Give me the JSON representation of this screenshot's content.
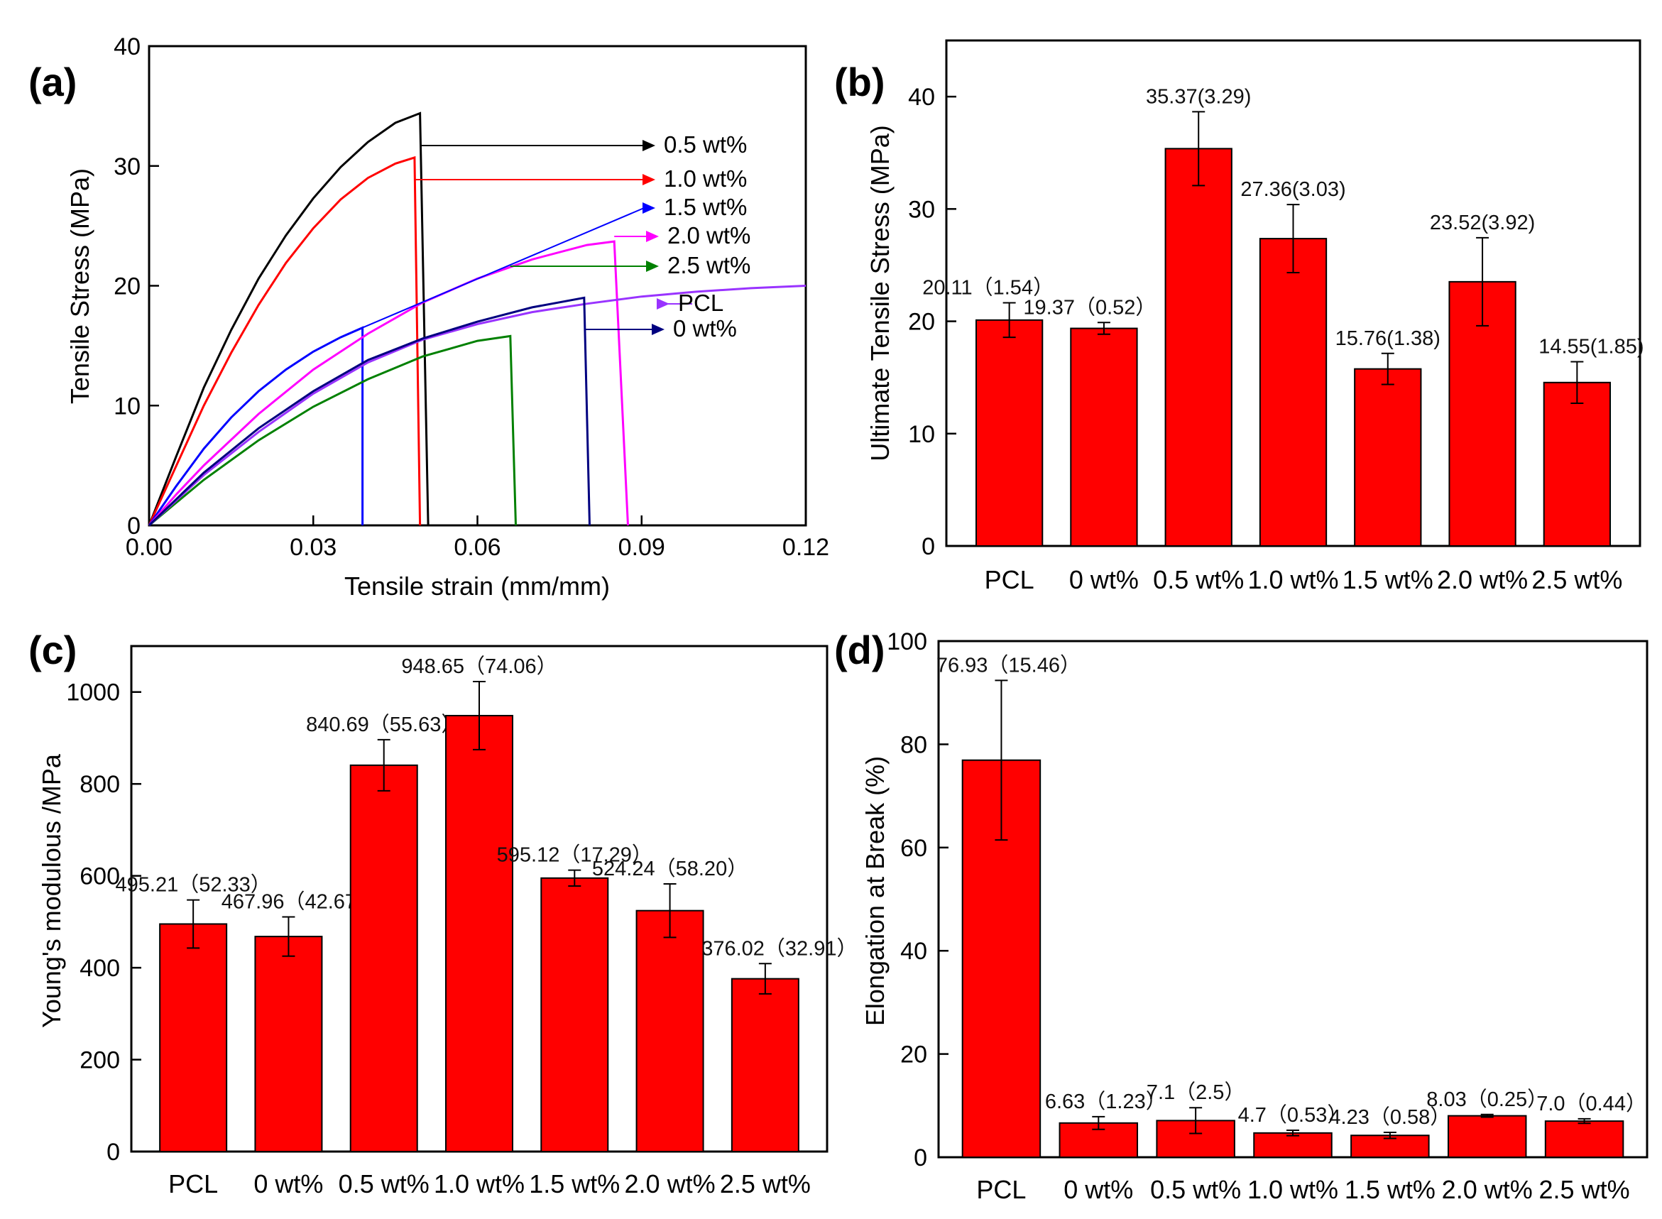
{
  "chart_data": [
    {
      "panel": "(a)",
      "type": "line",
      "xlabel": "Tensile strain (mm/mm)",
      "ylabel": "Tensile Stress (MPa)",
      "xlim": [
        0,
        0.12
      ],
      "ylim": [
        0,
        40
      ],
      "xticks": [
        "0.00",
        "0.03",
        "0.06",
        "0.09",
        "0.12"
      ],
      "yticks": [
        "0",
        "10",
        "20",
        "30",
        "40"
      ],
      "series": [
        {
          "name": "0.5 wt%",
          "color": "#000000",
          "break_strain": 0.051,
          "points": [
            [
              0,
              0
            ],
            [
              0.005,
              5.8
            ],
            [
              0.01,
              11.5
            ],
            [
              0.015,
              16.3
            ],
            [
              0.02,
              20.6
            ],
            [
              0.025,
              24.2
            ],
            [
              0.03,
              27.3
            ],
            [
              0.035,
              29.9
            ],
            [
              0.04,
              32.0
            ],
            [
              0.045,
              33.6
            ],
            [
              0.0495,
              34.4
            ]
          ]
        },
        {
          "name": "1.0 wt%",
          "color": "#ff0000",
          "break_strain": 0.0495,
          "points": [
            [
              0,
              0
            ],
            [
              0.005,
              5.0
            ],
            [
              0.01,
              10.0
            ],
            [
              0.015,
              14.4
            ],
            [
              0.02,
              18.4
            ],
            [
              0.025,
              21.9
            ],
            [
              0.03,
              24.8
            ],
            [
              0.035,
              27.2
            ],
            [
              0.04,
              29.0
            ],
            [
              0.045,
              30.2
            ],
            [
              0.0485,
              30.7
            ]
          ]
        },
        {
          "name": "1.5 wt%",
          "color": "#0000ff",
          "break_strain": 0.039,
          "points": [
            [
              0,
              0
            ],
            [
              0.005,
              3.3
            ],
            [
              0.01,
              6.4
            ],
            [
              0.015,
              9.0
            ],
            [
              0.02,
              11.2
            ],
            [
              0.025,
              13.0
            ],
            [
              0.03,
              14.5
            ],
            [
              0.035,
              15.7
            ],
            [
              0.039,
              16.5
            ]
          ]
        },
        {
          "name": "2.0 wt%",
          "color": "#ff00ff",
          "break_strain": 0.0875,
          "points": [
            [
              0,
              0
            ],
            [
              0.005,
              2.6
            ],
            [
              0.01,
              5.0
            ],
            [
              0.02,
              9.3
            ],
            [
              0.03,
              13.0
            ],
            [
              0.04,
              16.0
            ],
            [
              0.05,
              18.6
            ],
            [
              0.06,
              20.6
            ],
            [
              0.07,
              22.2
            ],
            [
              0.08,
              23.4
            ],
            [
              0.085,
              23.7
            ]
          ]
        },
        {
          "name": "2.5 wt%",
          "color": "#008000",
          "break_strain": 0.067,
          "points": [
            [
              0,
              0
            ],
            [
              0.005,
              1.9
            ],
            [
              0.01,
              3.8
            ],
            [
              0.02,
              7.1
            ],
            [
              0.03,
              9.9
            ],
            [
              0.04,
              12.2
            ],
            [
              0.05,
              14.1
            ],
            [
              0.06,
              15.4
            ],
            [
              0.066,
              15.8
            ]
          ]
        },
        {
          "name": "PCL",
          "color": "#9933ff",
          "break_strain": null,
          "points": [
            [
              0,
              0
            ],
            [
              0.005,
              2.1
            ],
            [
              0.01,
              4.2
            ],
            [
              0.02,
              7.8
            ],
            [
              0.03,
              11.0
            ],
            [
              0.04,
              13.6
            ],
            [
              0.05,
              15.5
            ],
            [
              0.06,
              16.8
            ],
            [
              0.07,
              17.8
            ],
            [
              0.08,
              18.5
            ],
            [
              0.09,
              19.1
            ],
            [
              0.1,
              19.5
            ],
            [
              0.11,
              19.8
            ],
            [
              0.12,
              20.0
            ]
          ]
        },
        {
          "name": "0 wt%",
          "color": "#000080",
          "break_strain": 0.0805,
          "points": [
            [
              0,
              0
            ],
            [
              0.005,
              2.2
            ],
            [
              0.01,
              4.4
            ],
            [
              0.02,
              8.1
            ],
            [
              0.03,
              11.2
            ],
            [
              0.04,
              13.8
            ],
            [
              0.05,
              15.6
            ],
            [
              0.06,
              17.0
            ],
            [
              0.07,
              18.2
            ],
            [
              0.0795,
              19.0
            ]
          ]
        }
      ]
    },
    {
      "panel": "(b)",
      "type": "bar",
      "ylabel": "Ultimate Tensile Stress (MPa)",
      "ylim": [
        0,
        45
      ],
      "yticks": [
        "0",
        "10",
        "20",
        "30",
        "40"
      ],
      "categories": [
        "PCL",
        "0 wt%",
        "0.5 wt%",
        "1.0 wt%",
        "1.5 wt%",
        "2.0 wt%",
        "2.5 wt%"
      ],
      "values": [
        20.11,
        19.37,
        35.37,
        27.36,
        15.76,
        23.52,
        14.55
      ],
      "errors": [
        1.54,
        0.52,
        3.29,
        3.03,
        1.38,
        3.92,
        1.85
      ],
      "labels": [
        "20.11（1.54）",
        "19.37（0.52）",
        "35.37(3.29)",
        "27.36(3.03)",
        "15.76(1.38)",
        "23.52(3.92)",
        "14.55(1.85)"
      ]
    },
    {
      "panel": "(c)",
      "type": "bar",
      "ylabel": "Young's modulous /MPa",
      "ylim": [
        0,
        1100
      ],
      "yticks": [
        "0",
        "200",
        "400",
        "600",
        "800",
        "1000"
      ],
      "categories": [
        "PCL",
        "0 wt%",
        "0.5 wt%",
        "1.0 wt%",
        "1.5 wt%",
        "2.0 wt%",
        "2.5 wt%"
      ],
      "values": [
        495.21,
        467.96,
        840.69,
        948.65,
        595.12,
        524.24,
        376.02
      ],
      "errors": [
        52.33,
        42.67,
        55.63,
        74.06,
        17.29,
        58.2,
        32.91
      ],
      "labels": [
        "495.21（52.33）",
        "467.96（42.67）",
        "840.69（55.63）",
        "948.65（74.06）",
        "595.12（17.29）",
        "524.24（58.20）",
        "376.02（32.91）"
      ]
    },
    {
      "panel": "(d)",
      "type": "bar",
      "ylabel": "Elongation at Break (%)",
      "ylim": [
        0,
        100
      ],
      "yticks": [
        "0",
        "20",
        "40",
        "60",
        "80",
        "100"
      ],
      "categories": [
        "PCL",
        "0 wt%",
        "0.5 wt%",
        "1.0 wt%",
        "1.5 wt%",
        "2.0 wt%",
        "2.5 wt%"
      ],
      "values": [
        76.93,
        6.63,
        7.1,
        4.7,
        4.23,
        8.03,
        7.0
      ],
      "errors": [
        15.46,
        1.23,
        2.5,
        0.53,
        0.58,
        0.25,
        0.44
      ],
      "labels": [
        "76.93（15.46）",
        "6.63（1.23）",
        "7.1（2.5）",
        "4.7（0.53）",
        "4.23（0.58）",
        "8.03（0.25）",
        "7.0（0.44）"
      ]
    }
  ]
}
